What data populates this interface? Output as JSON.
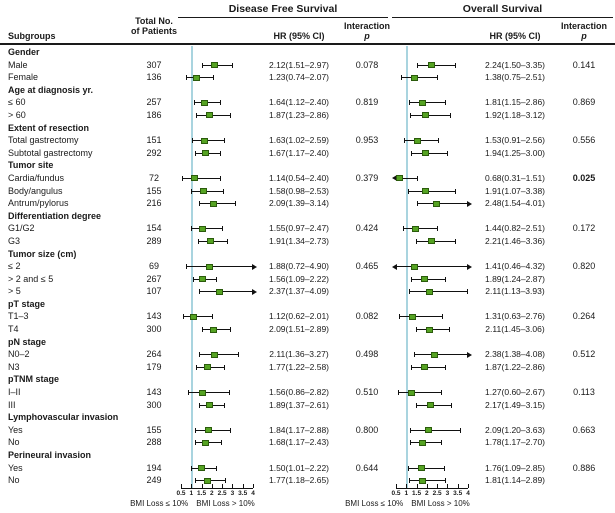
{
  "header": {
    "subgroups": "Subgroups",
    "patients_line1": "Total No.",
    "patients_line2": "of Patients",
    "dfs_title": "Disease Free Survival",
    "os_title": "Overall Survival",
    "hr_col": "HR (95% CI)",
    "interaction_line1": "Interaction",
    "interaction_line2": "p"
  },
  "colors": {
    "marker_green": "#55a322",
    "ref_line_blue": "#a9d4df",
    "text": "#1a1a1a"
  },
  "chart_data": {
    "type": "forest",
    "panels": [
      "Disease Free Survival",
      "Overall Survival"
    ],
    "axis": {
      "min": 0.5,
      "max": 4,
      "ref_line": 1,
      "ticks": [
        "0.5",
        "1",
        "1.5",
        "2",
        "2.5",
        "3",
        "3.5",
        "4"
      ],
      "left_label": "BMI Loss ≤ 10%",
      "right_label": "BMI Loss > 10%"
    },
    "rows": [
      {
        "category": "Gender"
      },
      {
        "label": "Male",
        "n": "307",
        "dfs": {
          "hr": 2.12,
          "lo": 1.51,
          "hi": 2.97,
          "ci": "2.12(1.51–2.97)",
          "p": "0.078"
        },
        "os": {
          "hr": 2.24,
          "lo": 1.5,
          "hi": 3.35,
          "ci": "2.24(1.50–3.35)",
          "p": "0.141"
        }
      },
      {
        "label": "Female",
        "n": "136",
        "dfs": {
          "hr": 1.23,
          "lo": 0.74,
          "hi": 2.07,
          "ci": "1.23(0.74–2.07)"
        },
        "os": {
          "hr": 1.38,
          "lo": 0.75,
          "hi": 2.51,
          "ci": "1.38(0.75–2.51)"
        }
      },
      {
        "category": "Age at diagnosis yr."
      },
      {
        "label": "≤ 60",
        "n": "257",
        "dfs": {
          "hr": 1.64,
          "lo": 1.12,
          "hi": 2.4,
          "ci": "1.64(1.12–2.40)",
          "p": "0.819"
        },
        "os": {
          "hr": 1.81,
          "lo": 1.15,
          "hi": 2.86,
          "ci": "1.81(1.15–2.86)",
          "p": "0.869"
        }
      },
      {
        "label": "> 60",
        "n": "186",
        "dfs": {
          "hr": 1.87,
          "lo": 1.23,
          "hi": 2.86,
          "ci": "1.87(1.23–2.86)"
        },
        "os": {
          "hr": 1.92,
          "lo": 1.18,
          "hi": 3.12,
          "ci": "1.92(1.18–3.12)"
        }
      },
      {
        "category": "Extent of resection"
      },
      {
        "label": "Total gastrectomy",
        "n": "151",
        "dfs": {
          "hr": 1.63,
          "lo": 1.02,
          "hi": 2.59,
          "ci": "1.63(1.02–2.59)",
          "p": "0.953"
        },
        "os": {
          "hr": 1.53,
          "lo": 0.91,
          "hi": 2.56,
          "ci": "1.53(0.91–2.56)",
          "p": "0.556"
        }
      },
      {
        "label": "Subtotal gastrectomy",
        "n": "292",
        "dfs": {
          "hr": 1.67,
          "lo": 1.17,
          "hi": 2.4,
          "ci": "1.67(1.17–2.40)"
        },
        "os": {
          "hr": 1.94,
          "lo": 1.25,
          "hi": 3.0,
          "ci": "1.94(1.25–3.00)"
        }
      },
      {
        "category": "Tumor site"
      },
      {
        "label": "Cardia/fundus",
        "n": "72",
        "dfs": {
          "hr": 1.14,
          "lo": 0.54,
          "hi": 2.4,
          "ci": "1.14(0.54–2.40)",
          "p": "0.379"
        },
        "os": {
          "hr": 0.68,
          "lo": 0.31,
          "hi": 1.51,
          "ci": "0.68(0.31–1.51)",
          "p": "0.025",
          "p_bold": true
        }
      },
      {
        "label": "Body/angulus",
        "n": "155",
        "dfs": {
          "hr": 1.58,
          "lo": 0.98,
          "hi": 2.53,
          "ci": "1.58(0.98–2.53)"
        },
        "os": {
          "hr": 1.91,
          "lo": 1.07,
          "hi": 3.38,
          "ci": "1.91(1.07–3.38)"
        }
      },
      {
        "label": "Antrum/pylorus",
        "n": "216",
        "dfs": {
          "hr": 2.09,
          "lo": 1.39,
          "hi": 3.14,
          "ci": "2.09(1.39–3.14)"
        },
        "os": {
          "hr": 2.48,
          "lo": 1.54,
          "hi": 4.01,
          "ci": "2.48(1.54–4.01)"
        }
      },
      {
        "category": "Differentiation degree"
      },
      {
        "label": "G1/G2",
        "n": "154",
        "dfs": {
          "hr": 1.55,
          "lo": 0.97,
          "hi": 2.47,
          "ci": "1.55(0.97–2.47)",
          "p": "0.424"
        },
        "os": {
          "hr": 1.44,
          "lo": 0.82,
          "hi": 2.51,
          "ci": "1.44(0.82–2.51)",
          "p": "0.172"
        }
      },
      {
        "label": "G3",
        "n": "289",
        "dfs": {
          "hr": 1.91,
          "lo": 1.34,
          "hi": 2.73,
          "ci": "1.91(1.34–2.73)"
        },
        "os": {
          "hr": 2.21,
          "lo": 1.46,
          "hi": 3.36,
          "ci": "2.21(1.46–3.36)"
        }
      },
      {
        "category": "Tumor size (cm)"
      },
      {
        "label": "≤ 2",
        "n": "69",
        "dfs": {
          "hr": 1.88,
          "lo": 0.72,
          "hi": 4.9,
          "ci": "1.88(0.72–4.90)",
          "p": "0.465"
        },
        "os": {
          "hr": 1.41,
          "lo": 0.46,
          "hi": 4.32,
          "ci": "1.41(0.46–4.32)",
          "p": "0.820"
        }
      },
      {
        "label": "> 2 and ≤ 5",
        "n": "267",
        "dfs": {
          "hr": 1.56,
          "lo": 1.09,
          "hi": 2.22,
          "ci": "1.56(1.09–2.22)"
        },
        "os": {
          "hr": 1.89,
          "lo": 1.24,
          "hi": 2.87,
          "ci": "1.89(1.24–2.87)"
        }
      },
      {
        "label": "> 5",
        "n": "107",
        "dfs": {
          "hr": 2.37,
          "lo": 1.37,
          "hi": 4.09,
          "ci": "2.37(1.37–4.09)"
        },
        "os": {
          "hr": 2.11,
          "lo": 1.13,
          "hi": 3.93,
          "ci": "2.11(1.13–3.93)"
        }
      },
      {
        "category": "pT stage"
      },
      {
        "label": "T1–3",
        "n": "143",
        "dfs": {
          "hr": 1.12,
          "lo": 0.62,
          "hi": 2.01,
          "ci": "1.12(0.62–2.01)",
          "p": "0.082"
        },
        "os": {
          "hr": 1.31,
          "lo": 0.63,
          "hi": 2.76,
          "ci": "1.31(0.63–2.76)",
          "p": "0.264"
        }
      },
      {
        "label": "T4",
        "n": "300",
        "dfs": {
          "hr": 2.09,
          "lo": 1.51,
          "hi": 2.89,
          "ci": "2.09(1.51–2.89)"
        },
        "os": {
          "hr": 2.11,
          "lo": 1.45,
          "hi": 3.06,
          "ci": "2.11(1.45–3.06)"
        }
      },
      {
        "category": "pN stage"
      },
      {
        "label": "N0–2",
        "n": "264",
        "dfs": {
          "hr": 2.11,
          "lo": 1.36,
          "hi": 3.27,
          "ci": "2.11(1.36–3.27)",
          "p": "0.498"
        },
        "os": {
          "hr": 2.38,
          "lo": 1.38,
          "hi": 4.08,
          "ci": "2.38(1.38–4.08)",
          "p": "0.512"
        }
      },
      {
        "label": "N3",
        "n": "179",
        "dfs": {
          "hr": 1.77,
          "lo": 1.22,
          "hi": 2.58,
          "ci": "1.77(1.22–2.58)"
        },
        "os": {
          "hr": 1.87,
          "lo": 1.22,
          "hi": 2.86,
          "ci": "1.87(1.22–2.86)"
        }
      },
      {
        "category": "pTNM stage"
      },
      {
        "label": "I–II",
        "n": "143",
        "dfs": {
          "hr": 1.56,
          "lo": 0.86,
          "hi": 2.82,
          "ci": "1.56(0.86–2.82)",
          "p": "0.510"
        },
        "os": {
          "hr": 1.27,
          "lo": 0.6,
          "hi": 2.67,
          "ci": "1.27(0.60–2.67)",
          "p": "0.113"
        }
      },
      {
        "label": "III",
        "n": "300",
        "dfs": {
          "hr": 1.89,
          "lo": 1.37,
          "hi": 2.61,
          "ci": "1.89(1.37–2.61)"
        },
        "os": {
          "hr": 2.17,
          "lo": 1.49,
          "hi": 3.15,
          "ci": "2.17(1.49–3.15)"
        }
      },
      {
        "category": "Lymphovascular invasion"
      },
      {
        "label": "Yes",
        "n": "155",
        "dfs": {
          "hr": 1.84,
          "lo": 1.17,
          "hi": 2.88,
          "ci": "1.84(1.17–2.88)",
          "p": "0.800"
        },
        "os": {
          "hr": 2.09,
          "lo": 1.2,
          "hi": 3.63,
          "ci": "2.09(1.20–3.63)",
          "p": "0.663"
        }
      },
      {
        "label": "No",
        "n": "288",
        "dfs": {
          "hr": 1.68,
          "lo": 1.17,
          "hi": 2.43,
          "ci": "1.68(1.17–2.43)"
        },
        "os": {
          "hr": 1.78,
          "lo": 1.17,
          "hi": 2.7,
          "ci": "1.78(1.17–2.70)"
        }
      },
      {
        "category": "Perineural invasion"
      },
      {
        "label": "Yes",
        "n": "194",
        "dfs": {
          "hr": 1.5,
          "lo": 1.01,
          "hi": 2.22,
          "ci": "1.50(1.01–2.22)",
          "p": "0.644"
        },
        "os": {
          "hr": 1.76,
          "lo": 1.09,
          "hi": 2.85,
          "ci": "1.76(1.09–2.85)",
          "p": "0.886"
        }
      },
      {
        "label": "No",
        "n": "249",
        "dfs": {
          "hr": 1.77,
          "lo": 1.18,
          "hi": 2.65,
          "ci": "1.77(1.18–2.65)"
        },
        "os": {
          "hr": 1.81,
          "lo": 1.14,
          "hi": 2.89,
          "ci": "1.81(1.14–2.89)"
        }
      }
    ]
  }
}
